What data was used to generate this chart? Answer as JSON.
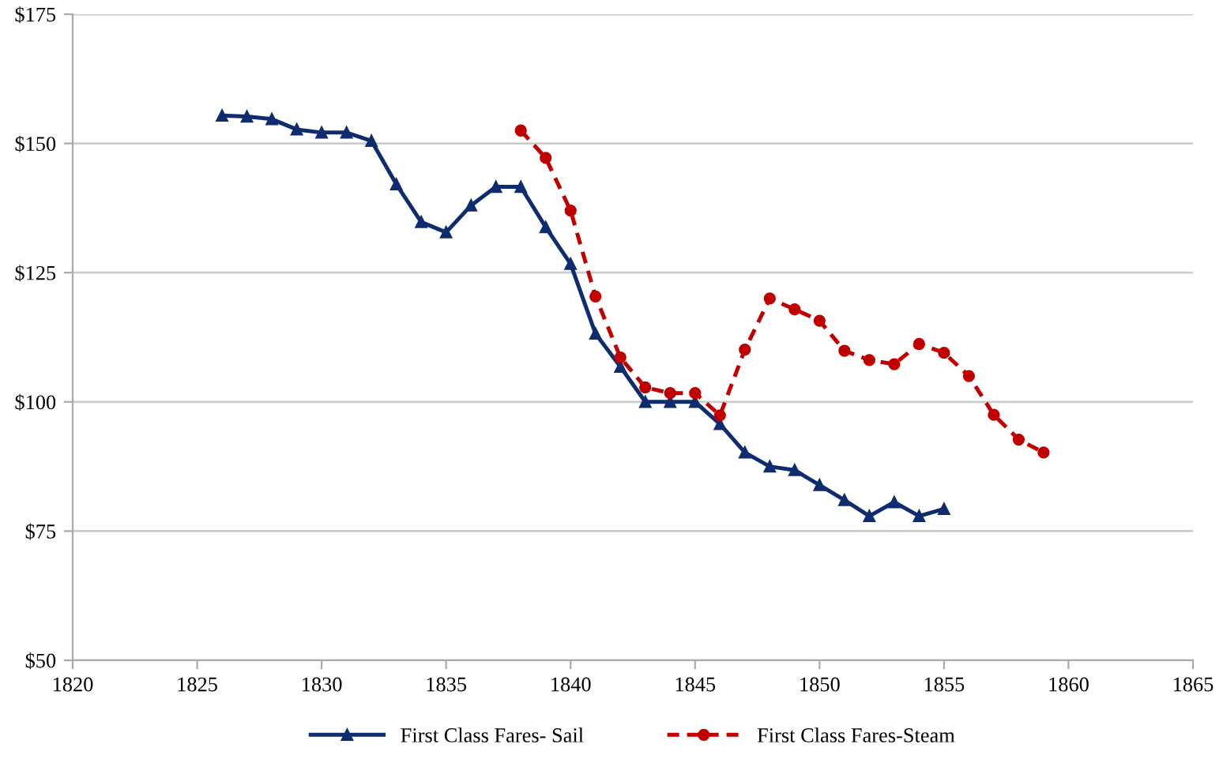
{
  "chart_data": {
    "type": "line",
    "xlim": [
      1820,
      1865
    ],
    "xticks": [
      1820,
      1825,
      1830,
      1835,
      1840,
      1845,
      1850,
      1855,
      1860,
      1865
    ],
    "ylim": [
      50,
      175
    ],
    "yticks": [
      {
        "value": 50,
        "label": "$50"
      },
      {
        "value": 75,
        "label": "$75"
      },
      {
        "value": 100,
        "label": "$100"
      },
      {
        "value": 125,
        "label": "$125"
      },
      {
        "value": 150,
        "label": "$150"
      },
      {
        "value": 175,
        "label": "$175"
      }
    ],
    "grid": "y",
    "legend": "bottom",
    "series": [
      {
        "name": "First Class Fares- Sail",
        "color": "#0f2d6e",
        "marker": "triangle",
        "line_style": "solid",
        "x": [
          1826,
          1827,
          1828,
          1829,
          1830,
          1831,
          1832,
          1833,
          1834,
          1835,
          1836,
          1837,
          1838,
          1839,
          1840,
          1841,
          1842,
          1843,
          1844,
          1845,
          1846,
          1847,
          1848,
          1849,
          1850,
          1851,
          1852,
          1853,
          1854,
          1855
        ],
        "values": [
          155.4,
          155.2,
          154.7,
          152.7,
          152.1,
          152.1,
          150.5,
          142.1,
          134.8,
          132.8,
          138.0,
          141.6,
          141.6,
          133.8,
          126.7,
          113.2,
          106.8,
          100,
          100,
          100,
          95.7,
          90.2,
          87.5,
          86.8,
          83.9,
          81.0,
          77.9,
          80.6,
          77.9,
          79.3
        ]
      },
      {
        "name": "First Class Fares-Steam",
        "color": "#c00000",
        "marker": "circle",
        "line_style": "dashed",
        "x": [
          1838,
          1839,
          1840,
          1841,
          1842,
          1843,
          1844,
          1845,
          1846,
          1847,
          1848,
          1849,
          1850,
          1851,
          1852,
          1853,
          1854,
          1855,
          1856,
          1857,
          1858,
          1859
        ],
        "values": [
          152.5,
          147.2,
          137.0,
          120.4,
          108.6,
          102.8,
          101.7,
          101.7,
          97.4,
          110.1,
          120.0,
          117.9,
          115.7,
          109.9,
          108.1,
          107.3,
          111.2,
          109.5,
          105.0,
          97.5,
          92.7,
          90.2
        ]
      }
    ]
  }
}
